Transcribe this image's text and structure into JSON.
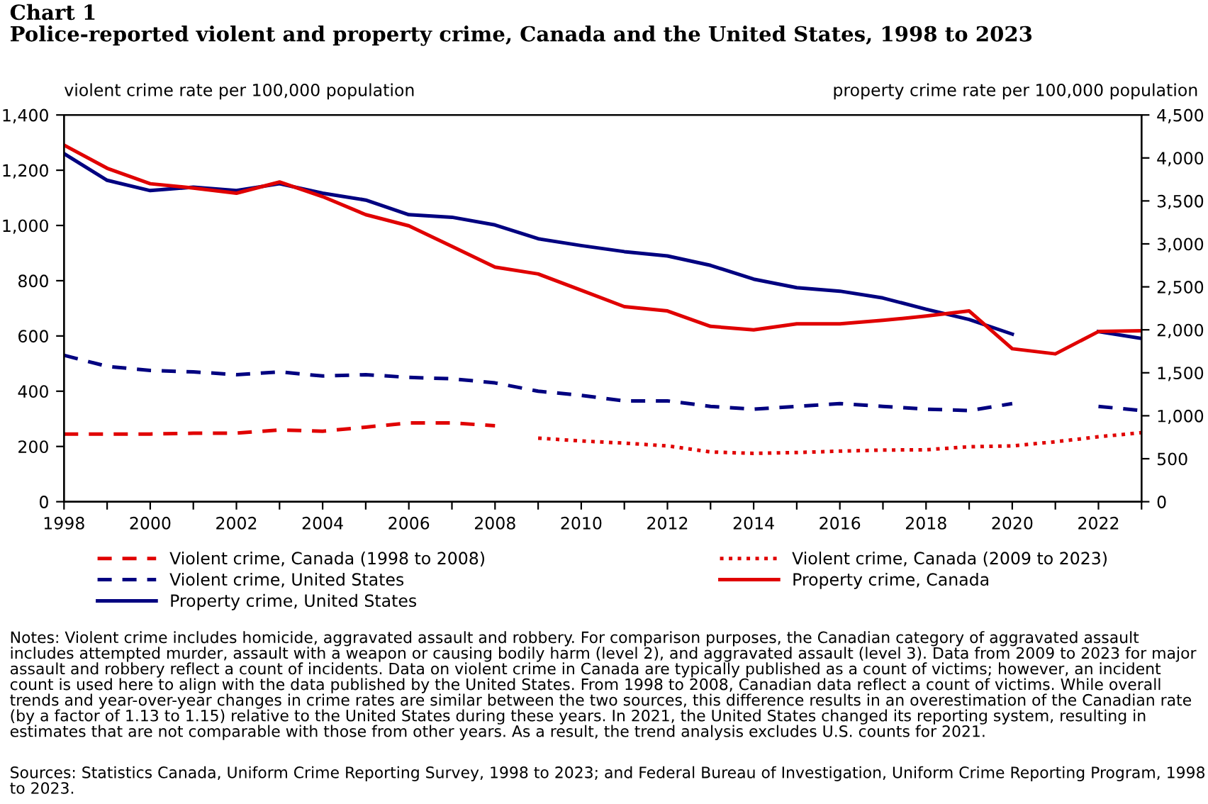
{
  "chart_data": {
    "type": "line",
    "title": "Chart 1\nPolice-reported violent and property crime, Canada and the United States, 1998 to 2023",
    "ylabel": "violent crime rate per 100,000 population",
    "y2label": "property crime rate per 100,000 population",
    "xlim": [
      1998,
      2023
    ],
    "xticks": [
      1998,
      {
        "value": 1999,
        "label": null
      },
      2000,
      {
        "value": 2001,
        "label": null
      },
      2002,
      {
        "value": 2003,
        "label": null
      },
      2004,
      {
        "value": 2005,
        "label": null
      },
      2006,
      {
        "value": 2007,
        "label": null
      },
      2008,
      {
        "value": 2009,
        "label": null
      },
      2010,
      {
        "value": 2011,
        "label": null
      },
      2012,
      {
        "value": 2013,
        "label": null
      },
      2014,
      {
        "value": 2015,
        "label": null
      },
      2016,
      {
        "value": 2017,
        "label": null
      },
      2018,
      {
        "value": 2019,
        "label": null
      },
      2020,
      {
        "value": 2021,
        "label": null
      },
      2022,
      {
        "value": 2023,
        "label": null
      }
    ],
    "ylim": [
      0,
      1400
    ],
    "yticks": [
      0,
      200,
      400,
      600,
      800,
      {
        "value": 1000,
        "label": "1,000"
      },
      {
        "value": 1200,
        "label": "1,200"
      },
      {
        "value": 1400,
        "label": "1,400"
      }
    ],
    "y2lim": [
      0,
      4500
    ],
    "y2ticks": [
      0,
      500,
      {
        "value": 1000,
        "label": "1,000"
      },
      {
        "value": 1500,
        "label": "1,500"
      },
      {
        "value": 2000,
        "label": "2,000"
      },
      {
        "value": 2500,
        "label": "2,500"
      },
      {
        "value": 3000,
        "label": "3,000"
      },
      {
        "value": 3500,
        "label": "3,500"
      },
      {
        "value": 4000,
        "label": "4,000"
      },
      {
        "value": 4500,
        "label": "4,500"
      }
    ],
    "grid": false,
    "legend": "bottom",
    "series": [
      {
        "name": "Violent crime, Canada (1998 to 2008)",
        "color": "#e00000",
        "line_style": "dashed",
        "x": [
          1998,
          1999,
          2000,
          2001,
          2002,
          2003,
          2004,
          2005,
          2006,
          2007,
          2008
        ],
        "values": [
          245,
          245,
          245,
          248,
          248,
          260,
          255,
          270,
          285,
          285,
          275
        ]
      },
      {
        "name": "Violent crime, United States",
        "color": "#000080",
        "line_style": "dashed",
        "x": [
          1998,
          1999,
          2000,
          2001,
          2002,
          2003,
          2004,
          2005,
          2006,
          2007,
          2008,
          2009,
          2010,
          2011,
          2012,
          2013,
          2014,
          2015,
          2016,
          2017,
          2018,
          2019,
          2020,
          2021,
          2022,
          2023
        ],
        "values": [
          530,
          490,
          475,
          470,
          460,
          470,
          455,
          460,
          450,
          445,
          430,
          400,
          385,
          365,
          365,
          345,
          335,
          345,
          355,
          345,
          335,
          330,
          355,
          null,
          345,
          330
        ]
      },
      {
        "name": "Property crime, United States",
        "color": "#000080",
        "line_style": "solid",
        "axis": "y2",
        "x": [
          1998,
          1999,
          2000,
          2001,
          2002,
          2003,
          2004,
          2005,
          2006,
          2007,
          2008,
          2009,
          2010,
          2011,
          2012,
          2013,
          2014,
          2015,
          2016,
          2017,
          2018,
          2019,
          2020,
          2021,
          2022,
          2023
        ],
        "values": [
          4050,
          3740,
          3620,
          3660,
          3620,
          3700,
          3590,
          3510,
          3340,
          3310,
          3220,
          3060,
          2980,
          2910,
          2860,
          2750,
          2590,
          2490,
          2450,
          2370,
          2240,
          2120,
          1950,
          null,
          1980,
          1900
        ]
      },
      {
        "name": "Violent crime, Canada (2009 to 2023)",
        "color": "#e00000",
        "line_style": "dotted",
        "x": [
          2009,
          2010,
          2011,
          2012,
          2013,
          2014,
          2015,
          2016,
          2017,
          2018,
          2019,
          2020,
          2021,
          2022,
          2023
        ],
        "values": [
          230,
          220,
          212,
          202,
          180,
          175,
          178,
          183,
          187,
          188,
          199,
          202,
          217,
          235,
          250
        ]
      },
      {
        "name": "Property crime, Canada",
        "color": "#e00000",
        "line_style": "solid",
        "axis": "y2",
        "x": [
          1998,
          1999,
          2000,
          2001,
          2002,
          2003,
          2004,
          2005,
          2006,
          2007,
          2008,
          2009,
          2010,
          2011,
          2012,
          2013,
          2014,
          2015,
          2016,
          2017,
          2018,
          2019,
          2020,
          2021,
          2022,
          2023
        ],
        "values": [
          4150,
          3880,
          3700,
          3650,
          3590,
          3720,
          3550,
          3340,
          3210,
          2970,
          2730,
          2650,
          2460,
          2270,
          2220,
          2040,
          2000,
          2070,
          2070,
          2110,
          2160,
          2220,
          1780,
          1720,
          1980,
          1990
        ]
      }
    ],
    "annotations": [
      "Notes: Violent crime includes homicide, aggravated assault and robbery. For comparison purposes, the Canadian category of aggravated assault includes attempted murder, assault with a weapon or causing bodily harm (level 2), and aggravated assault (level 3). Data from 2009 to 2023 for major assault and robbery reflect a count of incidents. Data on violent crime in Canada are typically published as a count of victims; however, an incident count is used here to align with the data published by the United States. From 1998 to 2008, Canadian data reflect a count of victims. While overall trends and year-over-year changes in crime rates are similar between the two sources, this difference results in an overestimation of the Canadian rate (by a factor of 1.13 to 1.15) relative to the United States during these years. In 2021, the United States changed its reporting system, resulting in estimates that are not comparable with those from other years. As a result, the trend analysis excludes U.S. counts for 2021.",
      "Sources: Statistics Canada, Uniform Crime Reporting Survey, 1998 to 2023; and Federal Bureau of Investigation, Uniform Crime Reporting Program, 1998 to 2023."
    ]
  }
}
